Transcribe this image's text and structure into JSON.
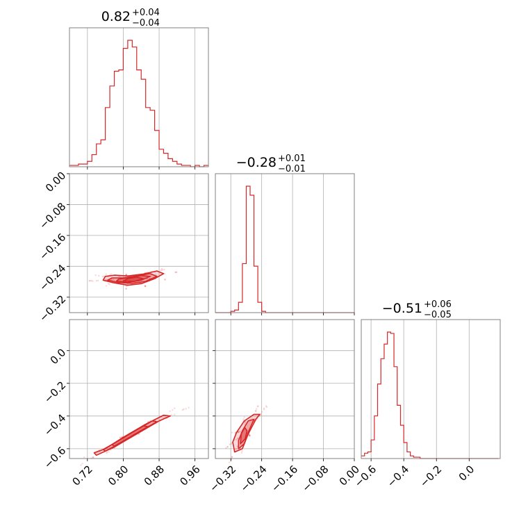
{
  "chart_data": {
    "type": "corner",
    "color": "#d62728",
    "grid": true,
    "parameters": [
      {
        "median": "0.82",
        "plus": "+0.04",
        "minus": "−0.04",
        "range": [
          0.68,
          0.99
        ],
        "ticks": [
          "0.72",
          "0.80",
          "0.88",
          "0.96"
        ]
      },
      {
        "median": "−0.28",
        "plus": "+0.01",
        "minus": "−0.01",
        "range": [
          -0.36,
          0.0
        ],
        "ticks": [
          "−0.32",
          "−0.24",
          "−0.16",
          "−0.08",
          "0.00"
        ]
      },
      {
        "median": "−0.51",
        "plus": "+0.06",
        "minus": "−0.05",
        "range": [
          -0.66,
          0.19
        ],
        "ticks": [
          "−0.6",
          "−0.4",
          "−0.2",
          "0.0"
        ]
      }
    ],
    "histograms": [
      {
        "param": 0,
        "bin_edges": [
          0.68,
          0.69,
          0.7,
          0.71,
          0.72,
          0.73,
          0.74,
          0.75,
          0.76,
          0.77,
          0.78,
          0.79,
          0.8,
          0.81,
          0.82,
          0.83,
          0.84,
          0.85,
          0.86,
          0.87,
          0.88,
          0.89,
          0.9,
          0.91,
          0.92,
          0.93,
          0.94,
          0.95,
          0.96,
          0.97,
          0.98,
          0.99
        ],
        "counts": [
          1,
          1,
          2,
          2,
          4,
          9,
          17,
          20,
          44,
          60,
          71,
          72,
          88,
          94,
          89,
          72,
          65,
          44,
          42,
          27,
          13,
          10,
          6,
          4,
          2,
          1,
          1,
          0,
          1,
          0,
          1
        ]
      },
      {
        "param": 1,
        "bin_edges": [
          -0.36,
          -0.35,
          -0.34,
          -0.33,
          -0.32,
          -0.31,
          -0.3,
          -0.29,
          -0.28,
          -0.27,
          -0.26,
          -0.25,
          -0.24,
          -0.23,
          -0.22,
          -0.21,
          -0.2,
          -0.19,
          -0.18,
          -0.17,
          -0.16,
          -0.15,
          -0.14,
          -0.13,
          -0.12,
          -0.11,
          -0.1,
          -0.09,
          -0.08,
          -0.07,
          -0.06,
          -0.05,
          -0.04,
          -0.03,
          -0.02,
          -0.01,
          0.0
        ],
        "counts": [
          0,
          0,
          0,
          0,
          1,
          2,
          8,
          38,
          98,
          91,
          36,
          8,
          1,
          0,
          0,
          0,
          0,
          0,
          0,
          0,
          0,
          0,
          0,
          0,
          0,
          0,
          0,
          0,
          0,
          0,
          0,
          0,
          0,
          0,
          0,
          0
        ]
      },
      {
        "param": 2,
        "bin_edges": [
          -0.66,
          -0.64,
          -0.62,
          -0.6,
          -0.58,
          -0.56,
          -0.54,
          -0.52,
          -0.5,
          -0.48,
          -0.46,
          -0.44,
          -0.42,
          -0.4,
          -0.38,
          -0.36,
          -0.34,
          -0.32,
          -0.3,
          -0.28,
          -0.26,
          -0.24,
          -0.22,
          -0.2,
          -0.18,
          -0.16,
          -0.14,
          -0.12,
          -0.1,
          -0.08,
          -0.06,
          -0.04,
          -0.02,
          0.0,
          0.02,
          0.04,
          0.06,
          0.08,
          0.1,
          0.12,
          0.14,
          0.16,
          0.18
        ],
        "counts": [
          2,
          4,
          5,
          14,
          32,
          56,
          75,
          86,
          95,
          94,
          69,
          40,
          25,
          12,
          5,
          2,
          1,
          1,
          0,
          0,
          0,
          0,
          0,
          0,
          0,
          0,
          0,
          0,
          0,
          0,
          0,
          0,
          0,
          0,
          0,
          0,
          0,
          0,
          0,
          0,
          0,
          0
        ]
      }
    ],
    "scatter_panels": [
      {
        "x_param": 0,
        "y_param": 1,
        "contours": [
          [
            [
              0.755,
              -0.276
            ],
            [
              0.78,
              -0.283
            ],
            [
              0.81,
              -0.289
            ],
            [
              0.84,
              -0.285
            ],
            [
              0.87,
              -0.272
            ],
            [
              0.89,
              -0.259
            ],
            [
              0.875,
              -0.252
            ],
            [
              0.845,
              -0.26
            ],
            [
              0.81,
              -0.265
            ],
            [
              0.78,
              -0.263
            ],
            [
              0.76,
              -0.266
            ]
          ],
          [
            [
              0.765,
              -0.276
            ],
            [
              0.79,
              -0.282
            ],
            [
              0.82,
              -0.284
            ],
            [
              0.85,
              -0.279
            ],
            [
              0.875,
              -0.266
            ],
            [
              0.86,
              -0.259
            ],
            [
              0.83,
              -0.265
            ],
            [
              0.8,
              -0.27
            ],
            [
              0.775,
              -0.27
            ]
          ],
          [
            [
              0.785,
              -0.278
            ],
            [
              0.81,
              -0.282
            ],
            [
              0.84,
              -0.276
            ],
            [
              0.86,
              -0.266
            ],
            [
              0.84,
              -0.264
            ],
            [
              0.81,
              -0.27
            ],
            [
              0.79,
              -0.273
            ]
          ],
          [
            [
              0.8,
              -0.278
            ],
            [
              0.825,
              -0.279
            ],
            [
              0.845,
              -0.272
            ],
            [
              0.83,
              -0.268
            ],
            [
              0.81,
              -0.272
            ]
          ]
        ]
      },
      {
        "x_param": 0,
        "y_param": 2,
        "contours": [
          [
            [
              0.74,
              -0.64
            ],
            [
              0.78,
              -0.59
            ],
            [
              0.83,
              -0.51
            ],
            [
              0.88,
              -0.43
            ],
            [
              0.905,
              -0.4
            ],
            [
              0.89,
              -0.395
            ],
            [
              0.85,
              -0.45
            ],
            [
              0.8,
              -0.53
            ],
            [
              0.76,
              -0.6
            ],
            [
              0.735,
              -0.625
            ]
          ],
          [
            [
              0.76,
              -0.615
            ],
            [
              0.8,
              -0.555
            ],
            [
              0.84,
              -0.49
            ],
            [
              0.875,
              -0.435
            ],
            [
              0.865,
              -0.43
            ],
            [
              0.83,
              -0.485
            ],
            [
              0.79,
              -0.55
            ],
            [
              0.755,
              -0.605
            ]
          ],
          [
            [
              0.78,
              -0.585
            ],
            [
              0.82,
              -0.52
            ],
            [
              0.855,
              -0.465
            ],
            [
              0.845,
              -0.46
            ],
            [
              0.81,
              -0.515
            ],
            [
              0.775,
              -0.575
            ]
          ]
        ]
      },
      {
        "x_param": 1,
        "y_param": 2,
        "contours": [
          [
            [
              -0.31,
              -0.62
            ],
            [
              -0.29,
              -0.6
            ],
            [
              -0.275,
              -0.51
            ],
            [
              -0.255,
              -0.42
            ],
            [
              -0.245,
              -0.39
            ],
            [
              -0.26,
              -0.39
            ],
            [
              -0.285,
              -0.43
            ],
            [
              -0.305,
              -0.5
            ],
            [
              -0.315,
              -0.56
            ]
          ],
          [
            [
              -0.3,
              -0.6
            ],
            [
              -0.285,
              -0.57
            ],
            [
              -0.275,
              -0.5
            ],
            [
              -0.26,
              -0.42
            ],
            [
              -0.275,
              -0.43
            ],
            [
              -0.29,
              -0.49
            ],
            [
              -0.3,
              -0.55
            ]
          ],
          [
            [
              -0.295,
              -0.57
            ],
            [
              -0.283,
              -0.54
            ],
            [
              -0.278,
              -0.49
            ],
            [
              -0.284,
              -0.47
            ],
            [
              -0.293,
              -0.51
            ]
          ]
        ]
      }
    ]
  }
}
